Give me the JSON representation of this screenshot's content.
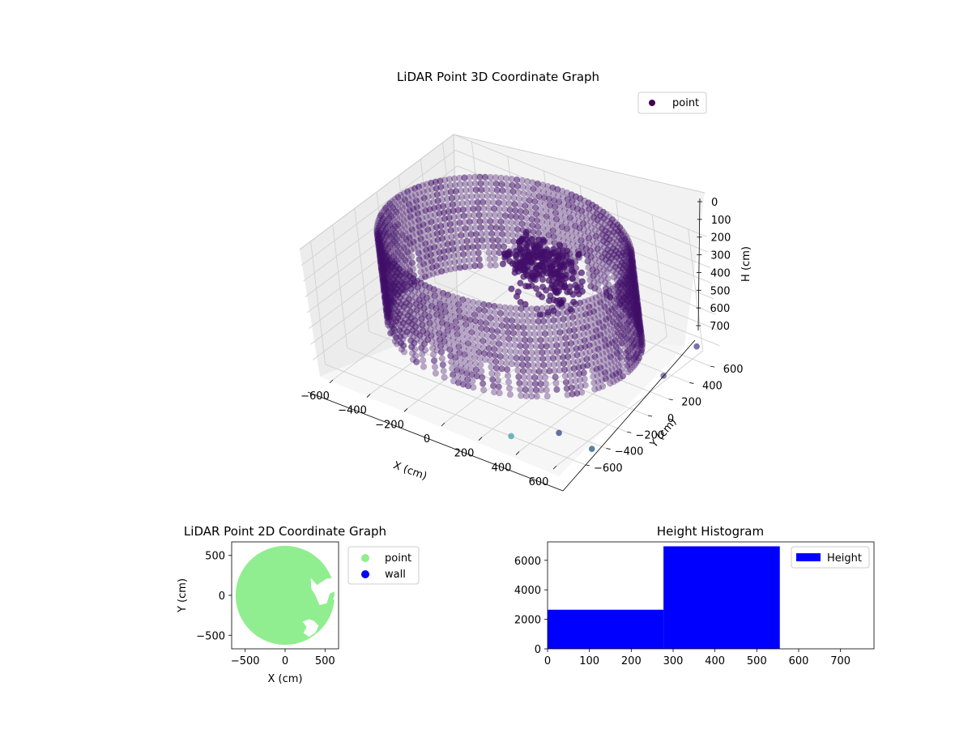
{
  "chart_data": [
    {
      "type": "scatter",
      "projection": "3d",
      "title": "LiDAR Point 3D Coordinate Graph",
      "xlabel": "X (cm)",
      "ylabel": "Y (cm)",
      "zlabel": "H (cm)",
      "xlim": [
        -700,
        700
      ],
      "ylim": [
        -700,
        700
      ],
      "zlim": [
        0,
        780
      ],
      "z_inverted": true,
      "x_ticks": [
        "−600",
        "−400",
        "−200",
        "0",
        "200",
        "400",
        "600"
      ],
      "y_ticks": [
        "−600",
        "−400",
        "−200",
        "0",
        "200",
        "400",
        "600"
      ],
      "z_ticks": [
        "0",
        "100",
        "200",
        "300",
        "400",
        "500",
        "600",
        "700"
      ],
      "grid": true,
      "legend": {
        "entries": [
          "point"
        ],
        "placement": "top-right"
      },
      "series": [
        {
          "name": "point",
          "color": "#440154",
          "shape": "cylindrical wall of points, radius about 600 cm, heights 0 to about 560 cm, plus an interior cluster near x 0 to 300, y 0 to 200",
          "wall_radius": 600,
          "wall_height_range": [
            0,
            560
          ],
          "outliers": [
            [
              300,
              -600,
              780
            ],
            [
              650,
              -450,
              780
            ],
            [
              520,
              -520,
              700
            ],
            [
              700,
              500,
              600
            ],
            [
              620,
              300,
              720
            ]
          ]
        }
      ]
    },
    {
      "type": "scatter",
      "title": "LiDAR Point 2D Coordinate Graph",
      "xlabel": "X (cm)",
      "ylabel": "Y (cm)",
      "xlim": [
        -670,
        670
      ],
      "ylim": [
        -670,
        670
      ],
      "x_ticks": [
        "−500",
        "0",
        "500"
      ],
      "y_ticks": [
        "500",
        "0",
        "−500"
      ],
      "grid": false,
      "legend": {
        "entries": [
          "point",
          "wall"
        ],
        "placement": "outside-right"
      },
      "series": [
        {
          "name": "point",
          "color": "#90ee90",
          "shape": "filled disc, radius about 620 cm, with gaps near x 300 to 650, y -450 to 200"
        },
        {
          "name": "wall",
          "color": "#0000ff",
          "shape": "no visible points"
        }
      ]
    },
    {
      "type": "bar",
      "title": "Height Histogram",
      "xlim": [
        0,
        780
      ],
      "ylim": [
        0,
        7250
      ],
      "x_ticks": [
        "0",
        "100",
        "200",
        "300",
        "400",
        "500",
        "600",
        "700"
      ],
      "y_ticks": [
        "0",
        "2000",
        "4000",
        "6000"
      ],
      "legend": {
        "entries": [
          "Height"
        ],
        "placement": "top-right"
      },
      "series": [
        {
          "name": "Height",
          "color": "#0000ff",
          "bins": [
            [
              0,
              277
            ],
            [
              277,
              555
            ]
          ],
          "values": [
            2650,
            6950
          ]
        }
      ]
    }
  ]
}
